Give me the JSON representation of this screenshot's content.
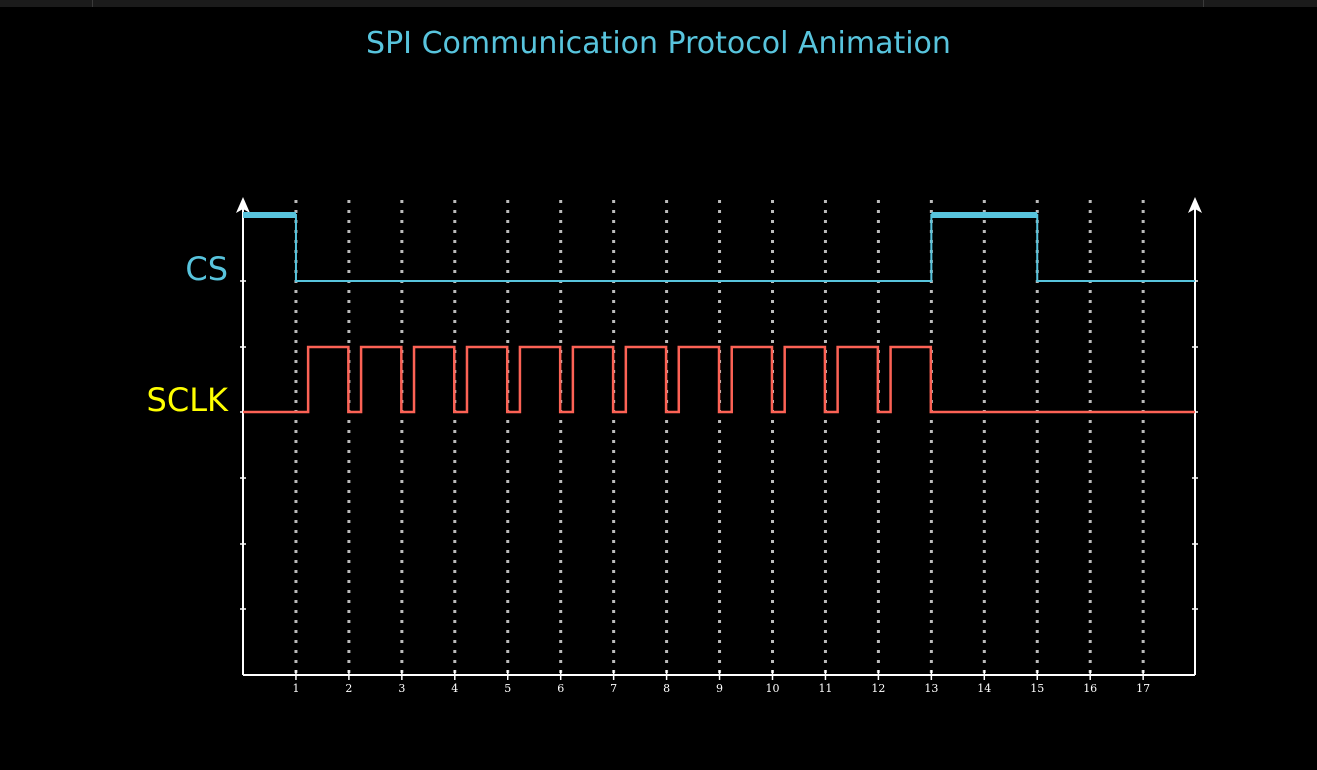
{
  "title": "SPI Communication Protocol Animation",
  "colors": {
    "background": "#000000",
    "title": "#58c4dd",
    "cs_label": "#58c4dd",
    "sclk_label": "#ffff00",
    "cs_wave": "#58c4dd",
    "sclk_wave": "#fc6255",
    "axes": "#ffffff",
    "grid": "#bbbbbb"
  },
  "signals": [
    {
      "name": "CS"
    },
    {
      "name": "SCLK"
    }
  ],
  "x_ticks": [
    "1",
    "2",
    "3",
    "4",
    "5",
    "6",
    "7",
    "8",
    "9",
    "10",
    "11",
    "12",
    "13",
    "14",
    "15",
    "16",
    "17"
  ],
  "cs_wave": {
    "levels": [
      [
        0,
        1
      ],
      [
        1,
        0
      ],
      [
        13,
        1
      ],
      [
        15,
        0
      ],
      [
        18,
        0
      ]
    ],
    "emphasized_high": [
      [
        0,
        1
      ],
      [
        13,
        15
      ]
    ]
  },
  "sclk_wave": {
    "idle_before": 1,
    "pulses": [
      [
        1.23,
        1.99
      ],
      [
        2.23,
        2.99
      ],
      [
        3.23,
        3.99
      ],
      [
        4.23,
        4.99
      ],
      [
        5.23,
        5.99
      ],
      [
        6.23,
        6.99
      ],
      [
        7.23,
        7.99
      ],
      [
        8.23,
        8.99
      ],
      [
        9.23,
        9.99
      ],
      [
        10.23,
        10.99
      ],
      [
        11.23,
        11.99
      ],
      [
        12.23,
        12.99
      ]
    ],
    "end": 18
  }
}
